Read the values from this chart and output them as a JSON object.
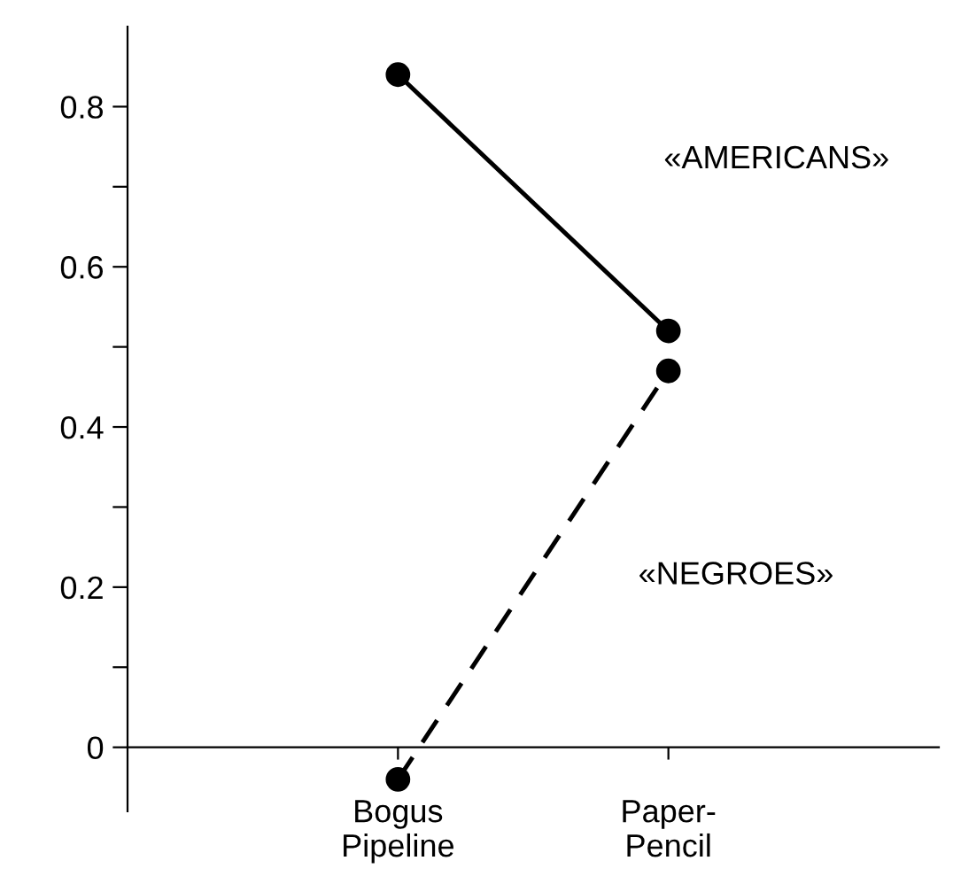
{
  "chart_data": {
    "type": "line",
    "categories": [
      "Bogus\nPipeline",
      "Paper-\nPencil"
    ],
    "series": [
      {
        "name": "«AMERICANS»",
        "color": "#000000",
        "values": [
          0.84,
          0.52
        ],
        "line_style": "solid"
      },
      {
        "name": "«NEGROES»",
        "color": "#000000",
        "values": [
          -0.04,
          0.47
        ],
        "line_style": "dashed"
      }
    ],
    "ylim": [
      -0.08,
      0.9
    ],
    "yticks": [
      {
        "value": 0,
        "label": "0"
      },
      {
        "value": 0.1,
        "label": null
      },
      0.2,
      {
        "value": 0.3,
        "label": null
      },
      0.4,
      {
        "value": 0.5,
        "label": null
      },
      0.6,
      {
        "value": 0.7,
        "label": null
      },
      0.8
    ],
    "marker": "circle",
    "grid": false,
    "legend": false
  }
}
